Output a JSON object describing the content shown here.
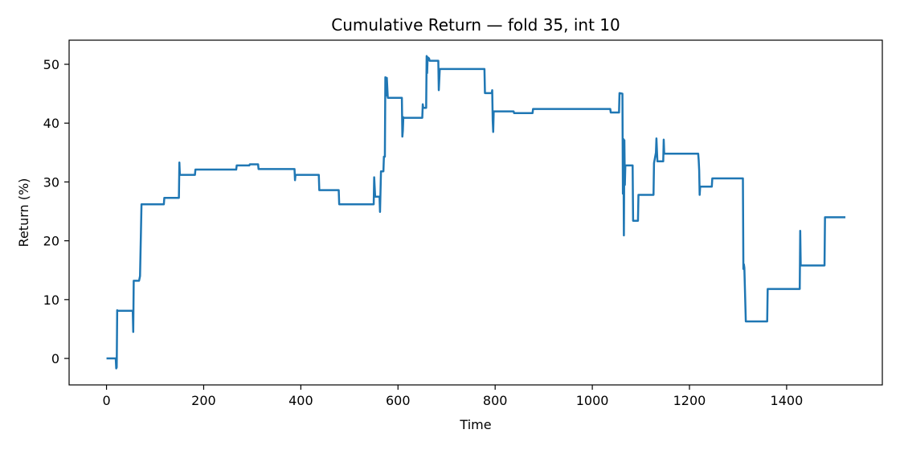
{
  "chart_data": {
    "type": "line",
    "title": "Cumulative Return — fold 35, int 10",
    "xlabel": "Time",
    "ylabel": "Return (%)",
    "xlim": [
      -77,
      1597
    ],
    "ylim": [
      -4.5,
      54.1
    ],
    "xticks": [
      0,
      200,
      400,
      600,
      800,
      1000,
      1200,
      1400
    ],
    "yticks": [
      0,
      10,
      20,
      30,
      40,
      50
    ],
    "grid": false,
    "legend": "none",
    "colors": {
      "line": "#1f77b4",
      "axis": "#000000",
      "background": "#ffffff"
    },
    "series": [
      {
        "points": [
          [
            0,
            0
          ],
          [
            19,
            0
          ],
          [
            20,
            -1.7
          ],
          [
            21,
            -1.5
          ],
          [
            22,
            8.2
          ],
          [
            23,
            8.1
          ],
          [
            54,
            8.1
          ],
          [
            55,
            4.5
          ],
          [
            56,
            13.2
          ],
          [
            67,
            13.2
          ],
          [
            69,
            14
          ],
          [
            71,
            22
          ],
          [
            72,
            26.2
          ],
          [
            73,
            26.2
          ],
          [
            118,
            26.2
          ],
          [
            119,
            27.3
          ],
          [
            149,
            27.3
          ],
          [
            150,
            33.3
          ],
          [
            151,
            31.2
          ],
          [
            182,
            31.2
          ],
          [
            183,
            32.1
          ],
          [
            267,
            32.1
          ],
          [
            268,
            32.8
          ],
          [
            294,
            32.8
          ],
          [
            295,
            33
          ],
          [
            312,
            33
          ],
          [
            313,
            32.2
          ],
          [
            387,
            32.2
          ],
          [
            388,
            30.3
          ],
          [
            389,
            31.2
          ],
          [
            437,
            31.2
          ],
          [
            438,
            28.6
          ],
          [
            478,
            28.6
          ],
          [
            479,
            26.2
          ],
          [
            550,
            26.2
          ],
          [
            551,
            30.8
          ],
          [
            553,
            27.5
          ],
          [
            562,
            27.5
          ],
          [
            563,
            24.9
          ],
          [
            565,
            31.8
          ],
          [
            570,
            31.8
          ],
          [
            571,
            34.3
          ],
          [
            573,
            34.3
          ],
          [
            574,
            47.8
          ],
          [
            576,
            44.7
          ],
          [
            577,
            47.7
          ],
          [
            579,
            44.3
          ],
          [
            608,
            44.3
          ],
          [
            609,
            37.7
          ],
          [
            610,
            38.7
          ],
          [
            611,
            41
          ],
          [
            612,
            40.9
          ],
          [
            650,
            40.9
          ],
          [
            651,
            43.2
          ],
          [
            652,
            42.6
          ],
          [
            658,
            42.6
          ],
          [
            659,
            51.4
          ],
          [
            660,
            48.5
          ],
          [
            661,
            51.2
          ],
          [
            664,
            51
          ],
          [
            665,
            50.6
          ],
          [
            683,
            50.6
          ],
          [
            684,
            45.6
          ],
          [
            686,
            49.2
          ],
          [
            778,
            49.2
          ],
          [
            779,
            45.1
          ],
          [
            793,
            45.1
          ],
          [
            794,
            45.6
          ],
          [
            795,
            40.4
          ],
          [
            796,
            38.5
          ],
          [
            797,
            42
          ],
          [
            838,
            42
          ],
          [
            839,
            41.7
          ],
          [
            877,
            41.7
          ],
          [
            878,
            42.4
          ],
          [
            1037,
            42.4
          ],
          [
            1038,
            41.8
          ],
          [
            1055,
            41.8
          ],
          [
            1056,
            45.1
          ],
          [
            1062,
            45
          ],
          [
            1063,
            28
          ],
          [
            1064,
            37.3
          ],
          [
            1065,
            20.9
          ],
          [
            1066,
            37.1
          ],
          [
            1067,
            29.5
          ],
          [
            1068,
            32.8
          ],
          [
            1083,
            32.8
          ],
          [
            1084,
            23.4
          ],
          [
            1094,
            23.4
          ],
          [
            1095,
            27.8
          ],
          [
            1126,
            27.8
          ],
          [
            1127,
            33.2
          ],
          [
            1131,
            35
          ],
          [
            1132,
            37.4
          ],
          [
            1134,
            33.5
          ],
          [
            1146,
            33.5
          ],
          [
            1147,
            37.2
          ],
          [
            1148,
            34.8
          ],
          [
            1218,
            34.8
          ],
          [
            1219,
            33.7
          ],
          [
            1220,
            32
          ],
          [
            1221,
            27.8
          ],
          [
            1222,
            29.2
          ],
          [
            1246,
            29.2
          ],
          [
            1247,
            30.6
          ],
          [
            1310,
            30.6
          ],
          [
            1311,
            15.2
          ],
          [
            1312,
            16
          ],
          [
            1313,
            15.4
          ],
          [
            1316,
            6.3
          ],
          [
            1360,
            6.3
          ],
          [
            1361,
            11.8
          ],
          [
            1427,
            11.8
          ],
          [
            1428,
            21.7
          ],
          [
            1429,
            15.8
          ],
          [
            1478,
            15.8
          ],
          [
            1479,
            24
          ],
          [
            1521,
            24
          ]
        ]
      }
    ]
  }
}
